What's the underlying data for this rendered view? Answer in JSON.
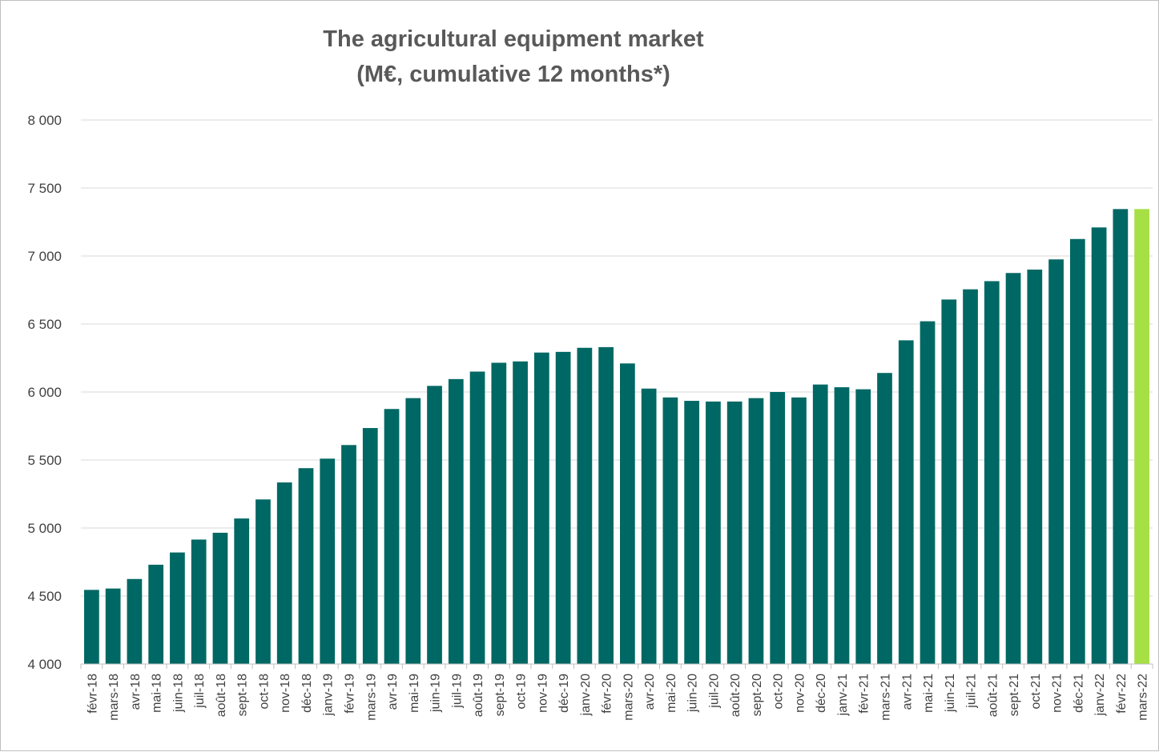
{
  "chart_data": {
    "type": "bar",
    "title": "The agricultural equipment market",
    "subtitle": "(M€, cumulative 12 months*)",
    "xlabel": "",
    "ylabel": "",
    "ylim": [
      4000,
      8000
    ],
    "yticks": [
      "4 000",
      "4 500",
      "5 000",
      "5 500",
      "6 000",
      "6 500",
      "7 000",
      "7 500",
      "8 000"
    ],
    "grid": true,
    "legend": "none",
    "colors": {
      "bar": "#006864",
      "highlight": "#A6E044",
      "grid": "#d9d9d9",
      "axis": "#bfbfbf"
    },
    "categories": [
      "févr-18",
      "mars-18",
      "avr-18",
      "mai-18",
      "juin-18",
      "juil-18",
      "août-18",
      "sept-18",
      "oct-18",
      "nov-18",
      "déc-18",
      "janv-19",
      "févr-19",
      "mars-19",
      "avr-19",
      "mai-19",
      "juin-19",
      "juil-19",
      "août-19",
      "sept-19",
      "oct-19",
      "nov-19",
      "déc-19",
      "janv-20",
      "févr-20",
      "mars-20",
      "avr-20",
      "mai-20",
      "juin-20",
      "juil-20",
      "août-20",
      "sept-20",
      "oct-20",
      "nov-20",
      "déc-20",
      "janv-21",
      "févr-21",
      "mars-21",
      "avr-21",
      "mai-21",
      "juin-21",
      "juil-21",
      "août-21",
      "sept-21",
      "oct-21",
      "nov-21",
      "déc-21",
      "janv-22",
      "févr-22",
      "mars-22"
    ],
    "values": [
      4545,
      4555,
      4625,
      4730,
      4820,
      4915,
      4965,
      5070,
      5210,
      5335,
      5440,
      5510,
      5610,
      5735,
      5875,
      5955,
      6045,
      6095,
      6150,
      6215,
      6225,
      6290,
      6295,
      6325,
      6330,
      6210,
      6025,
      5960,
      5935,
      5930,
      5930,
      5955,
      6000,
      5960,
      6055,
      6035,
      6020,
      6140,
      6380,
      6520,
      6680,
      6755,
      6815,
      6875,
      6900,
      6975,
      7125,
      7210,
      7345,
      7345
    ],
    "highlight_index": 49
  }
}
